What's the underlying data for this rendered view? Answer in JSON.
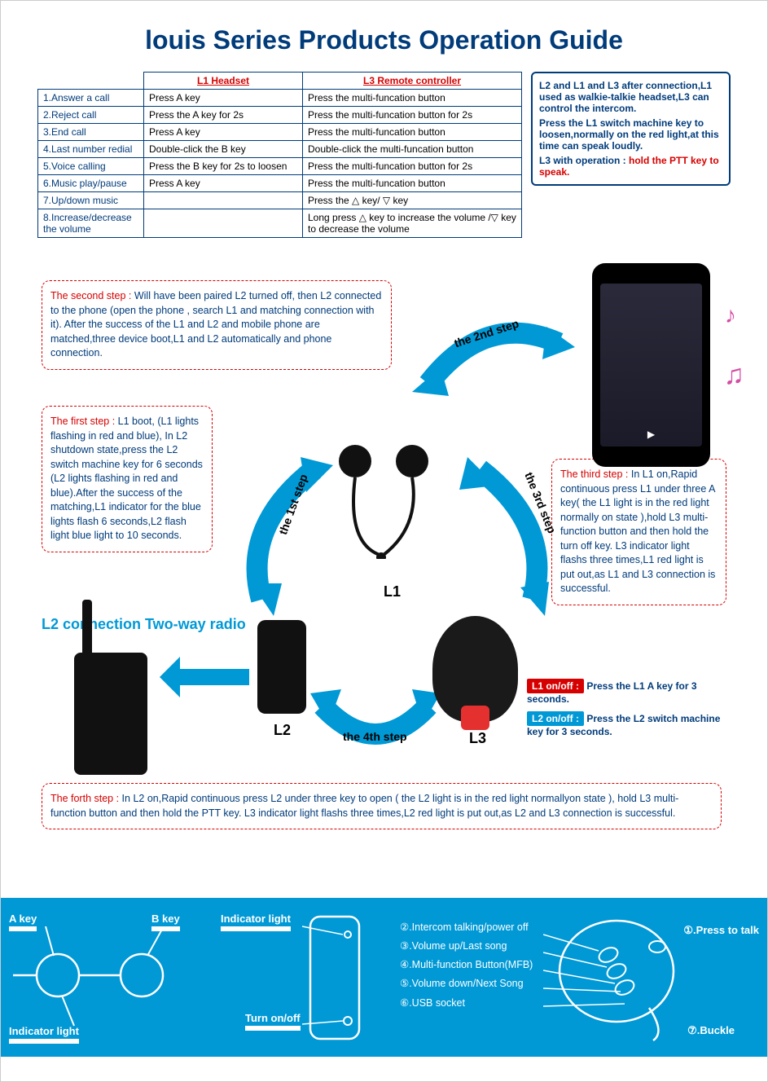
{
  "title": "louis Series Products Operation Guide",
  "table": {
    "headers": [
      "",
      "L1 Headset",
      "L3 Remote controller"
    ],
    "rows": [
      [
        "1.Answer a call",
        "Press A key",
        "Press the multi-funcation button"
      ],
      [
        "2.Reject call",
        "Press the A key for 2s",
        "Press the multi-funcation button for 2s"
      ],
      [
        "3.End call",
        "Press A key",
        "Press the multi-funcation button"
      ],
      [
        "4.Last number redial",
        "Double-click the B key",
        "Double-click the multi-funcation button"
      ],
      [
        "5.Voice calling",
        "Press the B key for 2s to loosen",
        "Press the multi-funcation button for 2s"
      ],
      [
        "6.Music play/pause",
        "Press A key",
        "Press the multi-funcation button"
      ],
      [
        "7.Up/down music",
        "",
        "Press the △ key/ ▽ key"
      ],
      [
        "8.Increase/decrease the volume",
        "",
        "Long press △ key to increase the volume /▽ key to decrease the volume"
      ]
    ]
  },
  "info_box": {
    "line1": "L2 and L1 and L3 after connection,L1 used as walkie-talkie headset,L3 can control the intercom.",
    "line2": "Press the L1 switch machine key to loosen,normally on the red light,at this time can speak loudly.",
    "line3_prefix": "L3 with operation : ",
    "line3_red": "hold the PTT key to speak."
  },
  "steps": {
    "step1": {
      "title": "The first step : ",
      "body": "L1 boot, (L1 lights flashing in red and blue), In L2 shutdown state,press the L2 switch machine key for 6 seconds (L2 lights flashing in red and blue).After the success of the matching,L1 indicator for the blue lights flash 6 seconds,L2 flash light blue light to 10 seconds."
    },
    "step2": {
      "title": "The second step : ",
      "body": "Will have been paired L2 turned off, then L2 connected to the phone (open the phone , search L1 and matching connection with it). After the success of the L1 and L2 and mobile phone are matched,three device boot,L1 and L2 automatically and phone connection."
    },
    "step3": {
      "title": "The third step : ",
      "body": "In L1 on,Rapid continuous press L1  under three A key( the L1 light is in the red light normally on state ),hold L3 multi-function button and then hold the turn off key.  L3 indicator light flashs three times,L1 red light is put out,as L1 and L3 connection is successful."
    },
    "step4": {
      "title": "The forth step : ",
      "body": "In L2 on,Rapid continuous press L2 under three key to open ( the L2 light is in the red light normallyon state ), hold L3 multi-function button and then hold the PTT key.  L3 indicator light flashs three times,L2 red light is put out,as L2 and L3 connection is successful."
    }
  },
  "step_arc_labels": {
    "s1": "the 1st step",
    "s2": "the 2nd step",
    "s3": "the 3rd step",
    "s4": "the 4th step"
  },
  "product_labels": {
    "l1": "L1",
    "l2": "L2",
    "l3": "L3"
  },
  "l2_connection": "L2 connection Two-way radio",
  "onoff": {
    "l1_badge": "L1 on/off :",
    "l1_text": "Press the L1 A key for 3 seconds.",
    "l2_badge": "L2 on/off :",
    "l2_text": "Press the L2 switch machine key for 3 seconds.",
    "l1_badge_color": "#d60000",
    "l2_badge_color": "#0099d6"
  },
  "bottom_panel": {
    "a_key": "A key",
    "b_key": "B key",
    "indicator_light": "Indicator light",
    "turn_on_off": "Turn on/off",
    "remote_items": [
      "②.Intercom talking/power off",
      "③.Volume up/Last song",
      "④.Multi-function Button(MFB)",
      "⑤.Volume down/Next Song",
      "⑥.USB socket"
    ],
    "press_to_talk": "①.Press to talk",
    "buckle": "⑦.Buckle"
  },
  "colors": {
    "primary_blue": "#003b7a",
    "accent_red": "#d60000",
    "arrow_blue": "#0099d6",
    "panel_blue": "#0099d6",
    "note_pink": "#d64ca3"
  }
}
